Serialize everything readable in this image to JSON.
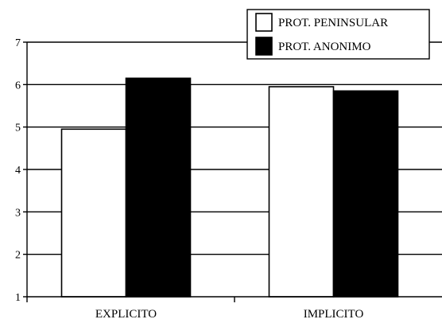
{
  "chart_data": {
    "type": "bar",
    "categories": [
      "EXPLICITO",
      "IMPLICITO"
    ],
    "series": [
      {
        "name": "PROT. PENINSULAR",
        "values": [
          4.95,
          5.95
        ],
        "color": "#ffffff"
      },
      {
        "name": "PROT. ANONIMO",
        "values": [
          6.15,
          5.85
        ],
        "color": "#000000"
      }
    ],
    "yticks": [
      "1",
      "2",
      "3",
      "4",
      "5",
      "6",
      "7"
    ],
    "ylim": [
      1,
      7
    ],
    "grid": true,
    "legend_position": "top-right"
  }
}
